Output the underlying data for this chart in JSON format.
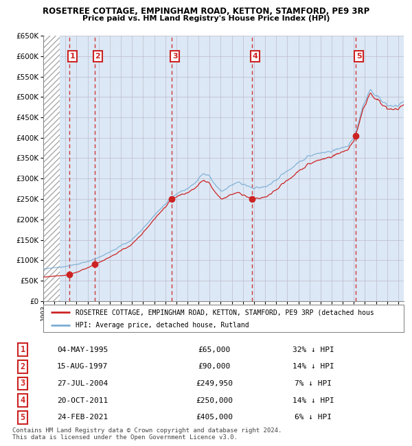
{
  "title": "ROSETREE COTTAGE, EMPINGHAM ROAD, KETTON, STAMFORD, PE9 3RP",
  "subtitle": "Price paid vs. HM Land Registry's House Price Index (HPI)",
  "ylim": [
    0,
    650000
  ],
  "yticks": [
    0,
    50000,
    100000,
    150000,
    200000,
    250000,
    300000,
    350000,
    400000,
    450000,
    500000,
    550000,
    600000,
    650000
  ],
  "xlim_start": 1993.0,
  "xlim_end": 2025.5,
  "sales": [
    {
      "year": 1995.34,
      "price": 65000,
      "label": "1"
    },
    {
      "year": 1997.62,
      "price": 90000,
      "label": "2"
    },
    {
      "year": 2004.57,
      "price": 249950,
      "label": "3"
    },
    {
      "year": 2011.8,
      "price": 250000,
      "label": "4"
    },
    {
      "year": 2021.15,
      "price": 405000,
      "label": "5"
    }
  ],
  "hpi_line_color": "#7aadd4",
  "sale_line_color": "#cc2222",
  "sale_dot_color": "#cc2222",
  "vline_color": "#cc2222",
  "grid_color": "#cccccc",
  "bg_color": "#dce8f5",
  "hatch_color": "#c8d8e8",
  "legend_entries": [
    "ROSETREE COTTAGE, EMPINGHAM ROAD, KETTON, STAMFORD, PE9 3RP (detached hous",
    "HPI: Average price, detached house, Rutland"
  ],
  "table_rows": [
    {
      "num": "1",
      "date": "04-MAY-1995",
      "price": "£65,000",
      "hpi": "32% ↓ HPI"
    },
    {
      "num": "2",
      "date": "15-AUG-1997",
      "price": "£90,000",
      "hpi": "14% ↓ HPI"
    },
    {
      "num": "3",
      "date": "27-JUL-2004",
      "price": "£249,950",
      "hpi": "7% ↓ HPI"
    },
    {
      "num": "4",
      "date": "20-OCT-2011",
      "price": "£250,000",
      "hpi": "14% ↓ HPI"
    },
    {
      "num": "5",
      "date": "24-FEB-2021",
      "price": "£405,000",
      "hpi": "6% ↓ HPI"
    }
  ],
  "footnote": "Contains HM Land Registry data © Crown copyright and database right 2024.\nThis data is licensed under the Open Government Licence v3.0."
}
